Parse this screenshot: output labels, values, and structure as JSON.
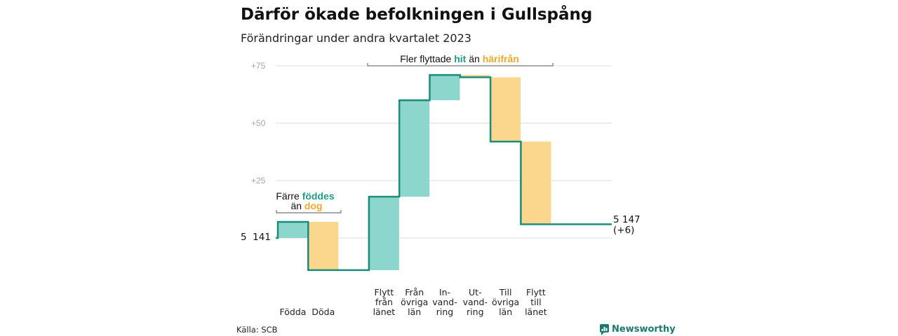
{
  "header": {
    "title": "Därför ökade befolkningen i Gullspång",
    "subtitle": "Förändringar under andra kvartalet 2023"
  },
  "colors": {
    "increase": "#8dd6cd",
    "decrease": "#fbd68d",
    "line": "#1a8c7a",
    "grid": "#dddddd",
    "tick_text": "#a6a6a6",
    "brand": "#1a7a6b"
  },
  "annotations": {
    "left": {
      "line1": "Färre ",
      "line1_bold": "föddes",
      "line2": "än ",
      "line2_bold": "dog"
    },
    "top": {
      "text1": "Fler flyttade ",
      "bold1": "hit",
      "text2": " än ",
      "bold2": "härifrån"
    }
  },
  "start_label": "5  141",
  "end_label": {
    "line1": "5 147",
    "line2": "(+6)"
  },
  "footer": {
    "source": "Källa: SCB",
    "brand": "Newsworthy",
    "brand_icon": "chart-bubble-icon"
  },
  "chart_data": {
    "type": "waterfall",
    "start_value": 5141,
    "end_value": 5147,
    "net_change": 6,
    "y_axis": {
      "ticks": [
        "+75",
        "+50",
        "+25"
      ],
      "tick_values": [
        75,
        50,
        25
      ],
      "ylim": [
        -14,
        80
      ],
      "grid": true
    },
    "steps": [
      {
        "label_lines": [
          "Födda"
        ],
        "change": 7
      },
      {
        "label_lines": [
          "Döda"
        ],
        "change": -21
      },
      {
        "label_lines": [
          "Flytt",
          "från",
          "länet"
        ],
        "change": 32
      },
      {
        "label_lines": [
          "Från",
          "övriga",
          "län"
        ],
        "change": 42
      },
      {
        "label_lines": [
          "In-",
          "vand-",
          "ring"
        ],
        "change": 11
      },
      {
        "label_lines": [
          "Ut-",
          "vand-",
          "ring"
        ],
        "change": -1
      },
      {
        "label_lines": [
          "Till",
          "övriga",
          "län"
        ],
        "change": -28
      },
      {
        "label_lines": [
          "Flytt",
          "till",
          "länet"
        ],
        "change": -36
      }
    ]
  }
}
